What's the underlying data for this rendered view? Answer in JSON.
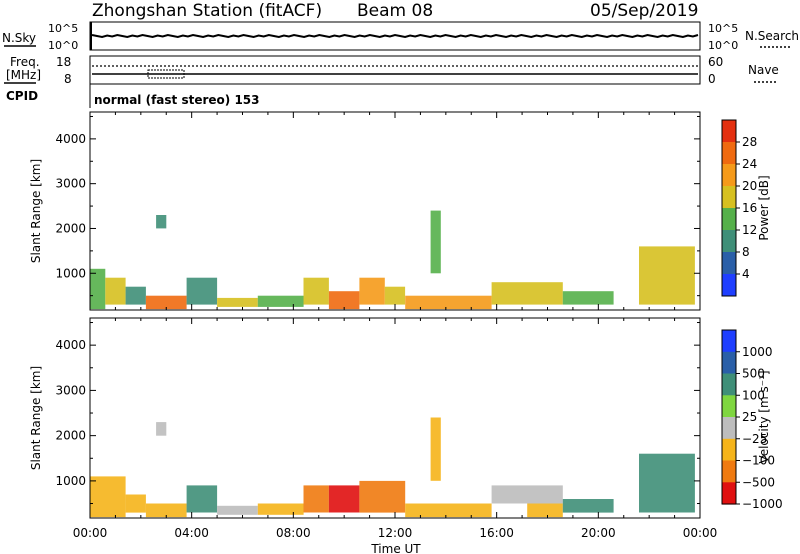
{
  "header": {
    "station": "Zhongshan Station (fitACF)",
    "beam": "Beam 08",
    "date": "05/Sep/2019"
  },
  "top_panels": {
    "nsky_label": "N.Sky",
    "nsky_tick_top": "10^5",
    "nsky_tick_bottom": "10^0",
    "nsearch_label": "N.Search",
    "nsearch_tick_top": "10^5",
    "nsearch_tick_bottom": "10^0",
    "freq_label_1": "Freq.",
    "freq_label_2": "[MHz]",
    "freq_tick_top": "18",
    "freq_tick_bottom": "8",
    "nave_label": "Nave",
    "nave_tick_top": "60",
    "nave_tick_bottom": "0",
    "cpid_label": "CPID",
    "cpid_value": "normal (fast stereo) 153"
  },
  "chart_data": [
    {
      "type": "heatmap",
      "panel": "power",
      "ylabel": "Slant Range [km]",
      "ylim": [
        180,
        4600
      ],
      "yticks": [
        1000,
        2000,
        3000,
        4000
      ],
      "xlim_hours": [
        0,
        24
      ],
      "colorbar": {
        "label": "Power [dB]",
        "tick_labels": [
          "4",
          "8",
          "12",
          "16",
          "20",
          "24",
          "28"
        ],
        "colors": [
          "#1f3fff",
          "#2a5fa8",
          "#3f8f78",
          "#55b04a",
          "#d6c020",
          "#f59a1a",
          "#ef6a10",
          "#e43010"
        ]
      },
      "cells": [
        {
          "t0": 0.0,
          "t1": 0.6,
          "r0": 200,
          "r1": 1100,
          "v": 12
        },
        {
          "t0": 0.6,
          "t1": 1.4,
          "r0": 300,
          "r1": 900,
          "v": 16
        },
        {
          "t0": 1.4,
          "t1": 2.2,
          "r0": 300,
          "r1": 700,
          "v": 10
        },
        {
          "t0": 2.2,
          "t1": 3.8,
          "r0": 200,
          "r1": 500,
          "v": 26
        },
        {
          "t0": 2.6,
          "t1": 3.0,
          "r0": 2000,
          "r1": 2300,
          "v": 8
        },
        {
          "t0": 3.8,
          "t1": 5.0,
          "r0": 300,
          "r1": 900,
          "v": 10
        },
        {
          "t0": 5.0,
          "t1": 6.6,
          "r0": 250,
          "r1": 450,
          "v": 16
        },
        {
          "t0": 6.6,
          "t1": 8.4,
          "r0": 250,
          "r1": 500,
          "v": 14
        },
        {
          "t0": 8.4,
          "t1": 9.4,
          "r0": 300,
          "r1": 900,
          "v": 18
        },
        {
          "t0": 9.4,
          "t1": 10.6,
          "r0": 200,
          "r1": 600,
          "v": 26
        },
        {
          "t0": 10.6,
          "t1": 11.6,
          "r0": 300,
          "r1": 900,
          "v": 22
        },
        {
          "t0": 11.6,
          "t1": 12.4,
          "r0": 300,
          "r1": 700,
          "v": 18
        },
        {
          "t0": 13.4,
          "t1": 13.8,
          "r0": 1000,
          "r1": 2400,
          "v": 14
        },
        {
          "t0": 12.4,
          "t1": 15.8,
          "r0": 200,
          "r1": 500,
          "v": 20
        },
        {
          "t0": 15.8,
          "t1": 18.6,
          "r0": 300,
          "r1": 800,
          "v": 16
        },
        {
          "t0": 18.6,
          "t1": 20.6,
          "r0": 300,
          "r1": 600,
          "v": 12
        },
        {
          "t0": 21.6,
          "t1": 23.8,
          "r0": 300,
          "r1": 1600,
          "v": 16
        }
      ]
    },
    {
      "type": "heatmap",
      "panel": "velocity",
      "ylabel": "Slant Range [km]",
      "ylim": [
        180,
        4600
      ],
      "yticks": [
        1000,
        2000,
        3000,
        4000
      ],
      "xlabel": "Time UT",
      "x_tick_labels": [
        "00:00",
        "04:00",
        "08:00",
        "12:00",
        "16:00",
        "20:00",
        "00:00"
      ],
      "colorbar": {
        "label": "Velocity [m s⁻¹]",
        "tick_labels": [
          "1000",
          "500",
          "100",
          "25",
          "−25",
          "−100",
          "−500",
          "−1000"
        ],
        "colors": [
          "#1f3fff",
          "#2a5fa8",
          "#3f8f78",
          "#7fd640",
          "#bdbdbd",
          "#f5b41a",
          "#ef7a10",
          "#e01010"
        ]
      },
      "cells": [
        {
          "t0": 0.0,
          "t1": 1.4,
          "r0": 200,
          "r1": 1100,
          "v": -100
        },
        {
          "t0": 1.4,
          "t1": 2.2,
          "r0": 300,
          "r1": 700,
          "v": -100
        },
        {
          "t0": 2.2,
          "t1": 3.8,
          "r0": 200,
          "r1": 500,
          "v": -100
        },
        {
          "t0": 2.6,
          "t1": 3.0,
          "r0": 2000,
          "r1": 2300,
          "v": 0
        },
        {
          "t0": 3.8,
          "t1": 5.0,
          "r0": 300,
          "r1": 900,
          "v": 100
        },
        {
          "t0": 5.0,
          "t1": 6.6,
          "r0": 250,
          "r1": 450,
          "v": 0
        },
        {
          "t0": 6.6,
          "t1": 8.4,
          "r0": 250,
          "r1": 500,
          "v": -100
        },
        {
          "t0": 8.4,
          "t1": 9.4,
          "r0": 300,
          "r1": 900,
          "v": -500
        },
        {
          "t0": 9.4,
          "t1": 10.6,
          "r0": 300,
          "r1": 900,
          "v": -1000
        },
        {
          "t0": 10.6,
          "t1": 12.4,
          "r0": 300,
          "r1": 1000,
          "v": -500
        },
        {
          "t0": 13.4,
          "t1": 13.8,
          "r0": 1000,
          "r1": 2400,
          "v": -100
        },
        {
          "t0": 12.4,
          "t1": 15.8,
          "r0": 200,
          "r1": 500,
          "v": -100
        },
        {
          "t0": 15.8,
          "t1": 18.6,
          "r0": 500,
          "r1": 900,
          "v": 0
        },
        {
          "t0": 17.2,
          "t1": 18.6,
          "r0": 200,
          "r1": 500,
          "v": -100
        },
        {
          "t0": 18.6,
          "t1": 20.6,
          "r0": 300,
          "r1": 600,
          "v": 100
        },
        {
          "t0": 21.6,
          "t1": 23.8,
          "r0": 300,
          "r1": 1600,
          "v": 100
        }
      ]
    }
  ]
}
